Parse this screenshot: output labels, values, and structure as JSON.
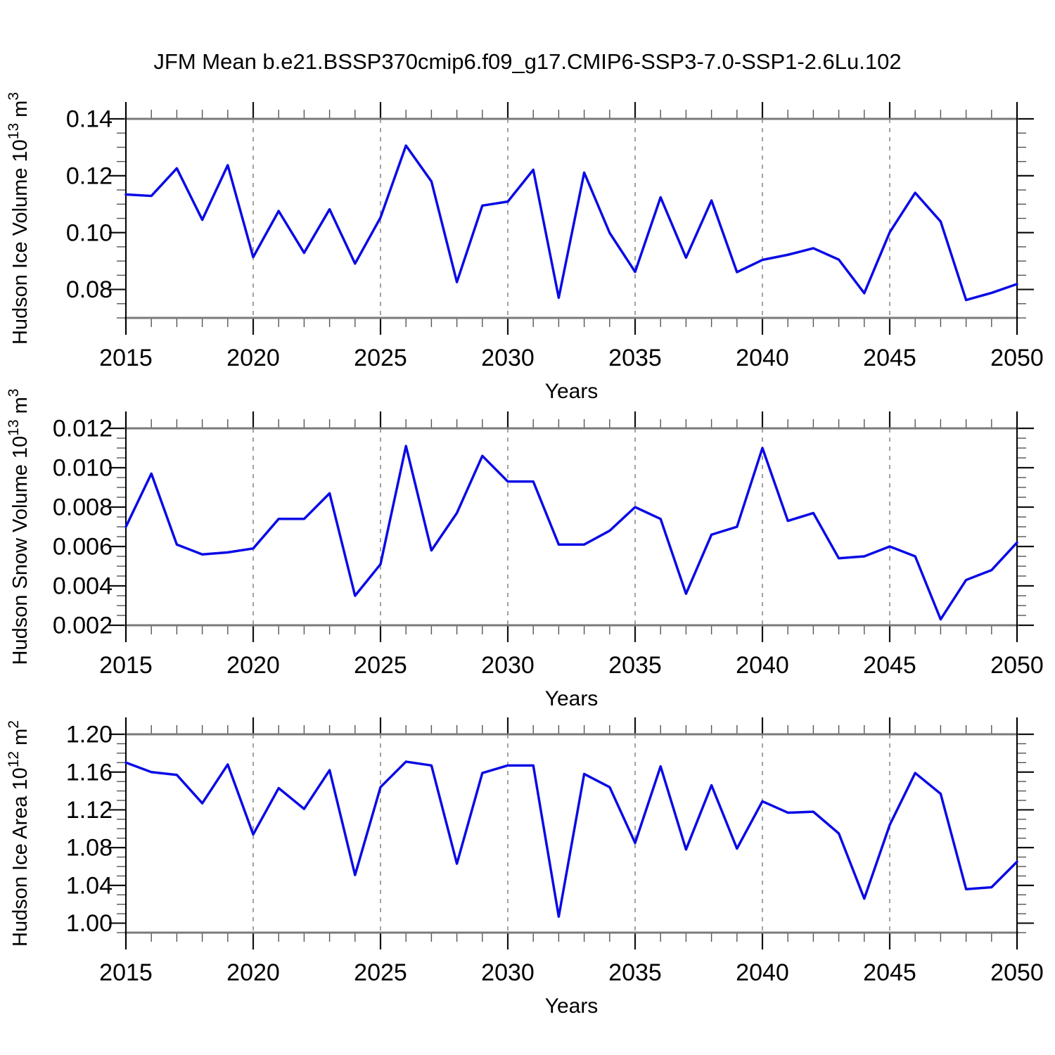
{
  "title": "JFM Mean b.e21.BSSP370cmip6.f09_g17.CMIP6-SSP3-7.0-SSP1-2.6Lu.102",
  "colors": {
    "line": "#0a0ae6",
    "frame_gray": "#7a7a7a",
    "axis_black": "#000000",
    "major_tick": "#111111",
    "minor_tick": "#555555",
    "grid_dash": "#8c8c8c",
    "text": "#000000",
    "background": "#ffffff"
  },
  "chart_data": [
    {
      "type": "line",
      "panel": 1,
      "xlabel": "Years",
      "ylabel": "Hudson Ice Volume 10^13 m^3",
      "ylabel_parts": [
        {
          "text": "Hudson Ice Volume 10",
          "sup": false
        },
        {
          "text": "13",
          "sup": true
        },
        {
          "text": " m",
          "sup": false
        },
        {
          "text": "3",
          "sup": true
        }
      ],
      "x": [
        2015,
        2016,
        2017,
        2018,
        2019,
        2020,
        2021,
        2022,
        2023,
        2024,
        2025,
        2026,
        2027,
        2028,
        2029,
        2030,
        2031,
        2032,
        2033,
        2034,
        2035,
        2036,
        2037,
        2038,
        2039,
        2040,
        2041,
        2042,
        2043,
        2044,
        2045,
        2046,
        2047,
        2048,
        2049,
        2050
      ],
      "values": [
        0.1134,
        0.1129,
        0.1226,
        0.1045,
        0.1237,
        0.0914,
        0.1076,
        0.0929,
        0.1082,
        0.0891,
        0.1053,
        0.1306,
        0.118,
        0.0826,
        0.1095,
        0.1109,
        0.1221,
        0.0771,
        0.1211,
        0.0999,
        0.0862,
        0.1124,
        0.0912,
        0.1113,
        0.0861,
        0.0904,
        0.0922,
        0.0945,
        0.0905,
        0.0787,
        0.1001,
        0.114,
        0.1039,
        0.0763,
        0.0788,
        0.0819
      ],
      "xlim": [
        2015,
        2050
      ],
      "ylim": [
        0.07,
        0.14
      ],
      "xticks": [
        {
          "value": 2015,
          "label": "2015"
        },
        {
          "value": 2020,
          "label": "2020"
        },
        {
          "value": 2025,
          "label": "2025"
        },
        {
          "value": 2030,
          "label": "2030"
        },
        {
          "value": 2035,
          "label": "2035"
        },
        {
          "value": 2040,
          "label": "2040"
        },
        {
          "value": 2045,
          "label": "2045"
        },
        {
          "value": 2050,
          "label": "2050"
        }
      ],
      "yticks": [
        {
          "value": 0.14,
          "label": "0.14"
        },
        {
          "value": 0.12,
          "label": "0.12"
        },
        {
          "value": 0.1,
          "label": "0.10"
        },
        {
          "value": 0.08,
          "label": "0.08"
        }
      ],
      "y_minor_step": 0.005,
      "x_minor_step": 1,
      "grid_years": [
        2020,
        2025,
        2030,
        2035,
        2040,
        2045
      ],
      "grid_style": "dashed-vertical"
    },
    {
      "type": "line",
      "panel": 2,
      "xlabel": "Years",
      "ylabel": "Hudson Snow Volume 10^13 m^3",
      "ylabel_parts": [
        {
          "text": "Hudson Snow Volume 10",
          "sup": false
        },
        {
          "text": "13",
          "sup": true
        },
        {
          "text": " m",
          "sup": false
        },
        {
          "text": "3",
          "sup": true
        }
      ],
      "x": [
        2015,
        2016,
        2017,
        2018,
        2019,
        2020,
        2021,
        2022,
        2023,
        2024,
        2025,
        2026,
        2027,
        2028,
        2029,
        2030,
        2031,
        2032,
        2033,
        2034,
        2035,
        2036,
        2037,
        2038,
        2039,
        2040,
        2041,
        2042,
        2043,
        2044,
        2045,
        2046,
        2047,
        2048,
        2049,
        2050
      ],
      "values": [
        0.007,
        0.0097,
        0.0061,
        0.0056,
        0.0057,
        0.0059,
        0.0074,
        0.0074,
        0.0087,
        0.0035,
        0.0051,
        0.0111,
        0.0058,
        0.0077,
        0.0106,
        0.0093,
        0.0093,
        0.0061,
        0.0061,
        0.0068,
        0.008,
        0.0074,
        0.0036,
        0.0066,
        0.007,
        0.011,
        0.0073,
        0.0077,
        0.0054,
        0.0055,
        0.006,
        0.0055,
        0.0023,
        0.0043,
        0.0048,
        0.0062
      ],
      "xlim": [
        2015,
        2050
      ],
      "ylim": [
        0.002,
        0.012
      ],
      "xticks": [
        {
          "value": 2015,
          "label": "2015"
        },
        {
          "value": 2020,
          "label": "2020"
        },
        {
          "value": 2025,
          "label": "2025"
        },
        {
          "value": 2030,
          "label": "2030"
        },
        {
          "value": 2035,
          "label": "2035"
        },
        {
          "value": 2040,
          "label": "2040"
        },
        {
          "value": 2045,
          "label": "2045"
        },
        {
          "value": 2050,
          "label": "2050"
        }
      ],
      "yticks": [
        {
          "value": 0.012,
          "label": "0.012"
        },
        {
          "value": 0.01,
          "label": "0.010"
        },
        {
          "value": 0.008,
          "label": "0.008"
        },
        {
          "value": 0.006,
          "label": "0.006"
        },
        {
          "value": 0.004,
          "label": "0.004"
        },
        {
          "value": 0.002,
          "label": "0.002"
        }
      ],
      "y_minor_step": 0.0005,
      "x_minor_step": 1,
      "grid_years": [
        2020,
        2025,
        2030,
        2035,
        2040,
        2045
      ],
      "grid_style": "dashed-vertical"
    },
    {
      "type": "line",
      "panel": 3,
      "xlabel": "Years",
      "ylabel": "Hudson Ice Area 10^12 m^2",
      "ylabel_parts": [
        {
          "text": "Hudson Ice Area 10",
          "sup": false
        },
        {
          "text": "12",
          "sup": true
        },
        {
          "text": " m",
          "sup": false
        },
        {
          "text": "2",
          "sup": true
        }
      ],
      "x": [
        2015,
        2016,
        2017,
        2018,
        2019,
        2020,
        2021,
        2022,
        2023,
        2024,
        2025,
        2026,
        2027,
        2028,
        2029,
        2030,
        2031,
        2032,
        2033,
        2034,
        2035,
        2036,
        2037,
        2038,
        2039,
        2040,
        2041,
        2042,
        2043,
        2044,
        2045,
        2046,
        2047,
        2048,
        2049,
        2050
      ],
      "values": [
        1.17,
        1.16,
        1.157,
        1.127,
        1.168,
        1.094,
        1.143,
        1.121,
        1.162,
        1.051,
        1.144,
        1.171,
        1.167,
        1.063,
        1.159,
        1.167,
        1.167,
        1.007,
        1.158,
        1.144,
        1.085,
        1.166,
        1.078,
        1.146,
        1.079,
        1.129,
        1.117,
        1.118,
        1.095,
        1.026,
        1.104,
        1.159,
        1.137,
        1.036,
        1.038,
        1.065
      ],
      "xlim": [
        2015,
        2050
      ],
      "ylim": [
        0.99,
        1.2
      ],
      "xticks": [
        {
          "value": 2015,
          "label": "2015"
        },
        {
          "value": 2020,
          "label": "2020"
        },
        {
          "value": 2025,
          "label": "2025"
        },
        {
          "value": 2030,
          "label": "2030"
        },
        {
          "value": 2035,
          "label": "2035"
        },
        {
          "value": 2040,
          "label": "2040"
        },
        {
          "value": 2045,
          "label": "2045"
        },
        {
          "value": 2050,
          "label": "2050"
        }
      ],
      "yticks": [
        {
          "value": 1.2,
          "label": "1.20"
        },
        {
          "value": 1.16,
          "label": "1.16"
        },
        {
          "value": 1.12,
          "label": "1.12"
        },
        {
          "value": 1.08,
          "label": "1.08"
        },
        {
          "value": 1.04,
          "label": "1.04"
        },
        {
          "value": 1.0,
          "label": "1.00"
        }
      ],
      "y_minor_step": 0.01,
      "x_minor_step": 1,
      "grid_years": [
        2020,
        2025,
        2030,
        2035,
        2040,
        2045
      ],
      "grid_style": "dashed-vertical"
    }
  ]
}
